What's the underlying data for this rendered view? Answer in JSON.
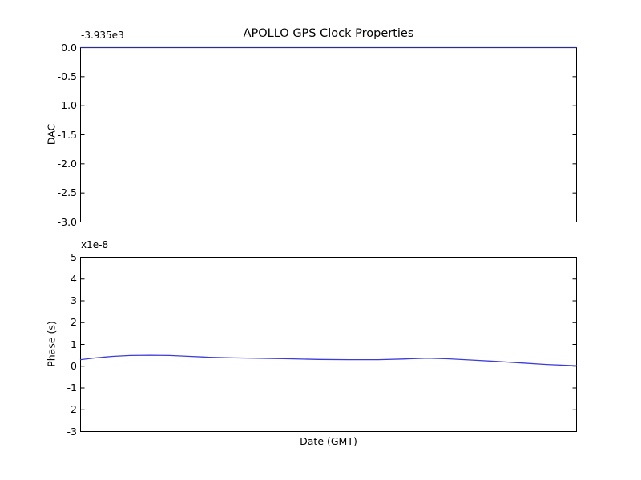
{
  "figure": {
    "title": "APOLLO GPS Clock Properties",
    "background_color": "#ffffff",
    "axis_color": "#000000",
    "series_color": "#0000ff"
  },
  "chart_data": [
    {
      "type": "line",
      "title": "APOLLO GPS Clock Properties",
      "xlabel": "",
      "ylabel": "DAC",
      "offset_text": "-3.935e3",
      "ylim": [
        -3.0,
        0.0
      ],
      "ytick_labels": [
        "0.0",
        "-0.5",
        "-1.0",
        "-1.5",
        "-2.0",
        "-2.5",
        "-3.0"
      ],
      "xtick_labels": [],
      "grid": false,
      "legend": false,
      "series": [
        {
          "name": "DAC",
          "color": "#0000ff",
          "x_frac": [
            0.0,
            1.0
          ],
          "y": [
            0.0,
            0.0
          ]
        }
      ]
    },
    {
      "type": "line",
      "title": "",
      "xlabel": "Date (GMT)",
      "ylabel": "Phase (s)",
      "multiplier_text": "x1e-8",
      "ylim": [
        -3,
        5
      ],
      "ytick_labels": [
        "5",
        "4",
        "3",
        "2",
        "1",
        "0",
        "-1",
        "-2",
        "-3"
      ],
      "xtick_labels": [],
      "grid": false,
      "legend": false,
      "series": [
        {
          "name": "Phase",
          "color": "#0000ff",
          "x_frac": [
            0.0,
            0.03,
            0.065,
            0.1,
            0.14,
            0.18,
            0.22,
            0.26,
            0.31,
            0.36,
            0.42,
            0.48,
            0.54,
            0.6,
            0.65,
            0.7,
            0.74,
            0.79,
            0.84,
            0.89,
            0.94,
            1.0
          ],
          "y": [
            0.3,
            0.38,
            0.45,
            0.49,
            0.5,
            0.49,
            0.45,
            0.41,
            0.38,
            0.36,
            0.34,
            0.31,
            0.3,
            0.3,
            0.33,
            0.37,
            0.34,
            0.28,
            0.22,
            0.15,
            0.08,
            0.02
          ]
        }
      ]
    }
  ]
}
